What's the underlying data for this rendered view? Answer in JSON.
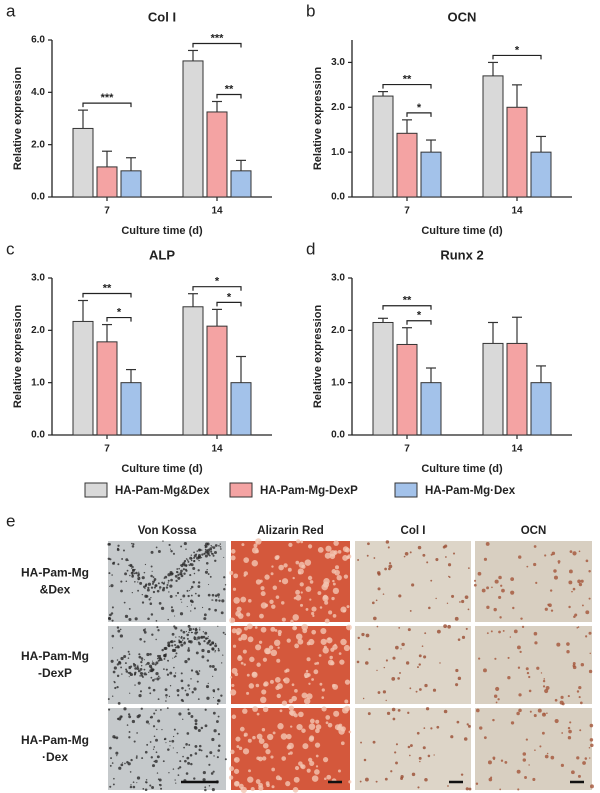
{
  "chart_data": [
    {
      "type": "bar",
      "panel_label": "a",
      "title": "Col I",
      "x_label": "Culture time (d)",
      "y_label": "Relative expression",
      "categories": [
        "7",
        "14"
      ],
      "ylim": [
        0,
        6
      ],
      "yticks": [
        {
          "value": 0,
          "label": "0.0"
        },
        {
          "value": 2,
          "label": "2.0"
        },
        {
          "value": 4,
          "label": "4.0"
        },
        {
          "value": 6,
          "label": "6.0"
        }
      ],
      "series": [
        {
          "name": "HA-Pam-Mg&Dex",
          "color": "#d9d9d9",
          "values": [
            2.62,
            5.2
          ],
          "errors": [
            0.7,
            0.4
          ]
        },
        {
          "name": "HA-Pam-Mg-DexP",
          "color": "#f4a3a3",
          "values": [
            1.15,
            3.25
          ],
          "errors": [
            0.6,
            0.4
          ]
        },
        {
          "name": "HA-Pam-Mg·Dex",
          "color": "#a3c2ea",
          "values": [
            1.0,
            1.0
          ],
          "errors": [
            0.5,
            0.4
          ]
        }
      ],
      "annotations": [
        {
          "text": "***",
          "category": 0,
          "series": [
            0,
            2
          ]
        },
        {
          "text": "**",
          "category": 1,
          "series": [
            1,
            2
          ]
        },
        {
          "text": "***",
          "category": 1,
          "series": [
            0,
            2
          ]
        }
      ]
    },
    {
      "type": "bar",
      "panel_label": "b",
      "title": "OCN",
      "x_label": "Culture time (d)",
      "y_label": "Relative expression",
      "categories": [
        "7",
        "14"
      ],
      "ylim": [
        0,
        3.5
      ],
      "yticks": [
        {
          "value": 0,
          "label": "0.0"
        },
        {
          "value": 1,
          "label": "1.0"
        },
        {
          "value": 2,
          "label": "2.0"
        },
        {
          "value": 3,
          "label": "3.0"
        }
      ],
      "series": [
        {
          "color": "#d9d9d9",
          "values": [
            2.25,
            2.7
          ],
          "errors": [
            0.1,
            0.3
          ]
        },
        {
          "color": "#f4a3a3",
          "values": [
            1.42,
            2.0
          ],
          "errors": [
            0.3,
            0.5
          ]
        },
        {
          "color": "#a3c2ea",
          "values": [
            1.0,
            1.0
          ],
          "errors": [
            0.27,
            0.35
          ]
        }
      ],
      "annotations": [
        {
          "text": "*",
          "category": 0,
          "series": [
            1,
            2
          ]
        },
        {
          "text": "**",
          "category": 0,
          "series": [
            0,
            2
          ]
        },
        {
          "text": "*",
          "category": 1,
          "series": [
            0,
            2
          ]
        }
      ]
    },
    {
      "type": "bar",
      "panel_label": "c",
      "title": "ALP",
      "x_label": "Culture time (d)",
      "y_label": "Relative expression",
      "categories": [
        "7",
        "14"
      ],
      "ylim": [
        0,
        3
      ],
      "yticks": [
        {
          "value": 0,
          "label": "0.0"
        },
        {
          "value": 1,
          "label": "1.0"
        },
        {
          "value": 2,
          "label": "2.0"
        },
        {
          "value": 3,
          "label": "3.0"
        }
      ],
      "series": [
        {
          "color": "#d9d9d9",
          "values": [
            2.17,
            2.45
          ],
          "errors": [
            0.4,
            0.25
          ]
        },
        {
          "color": "#f4a3a3",
          "values": [
            1.78,
            2.08
          ],
          "errors": [
            0.33,
            0.32
          ]
        },
        {
          "color": "#a3c2ea",
          "values": [
            1.0,
            1.0
          ],
          "errors": [
            0.25,
            0.5
          ]
        }
      ],
      "annotations": [
        {
          "text": "*",
          "category": 0,
          "series": [
            1,
            2
          ]
        },
        {
          "text": "**",
          "category": 0,
          "series": [
            0,
            2
          ]
        },
        {
          "text": "*",
          "category": 1,
          "series": [
            1,
            2
          ]
        },
        {
          "text": "*",
          "category": 1,
          "series": [
            0,
            2
          ]
        }
      ]
    },
    {
      "type": "bar",
      "panel_label": "d",
      "title": "Runx 2",
      "x_label": "Culture time (d)",
      "y_label": "Relative expression",
      "categories": [
        "7",
        "14"
      ],
      "ylim": [
        0,
        3
      ],
      "yticks": [
        {
          "value": 0,
          "label": "0.0"
        },
        {
          "value": 1,
          "label": "1.0"
        },
        {
          "value": 2,
          "label": "2.0"
        },
        {
          "value": 3,
          "label": "3.0"
        }
      ],
      "series": [
        {
          "color": "#d9d9d9",
          "values": [
            2.15,
            1.75
          ],
          "errors": [
            0.08,
            0.4
          ]
        },
        {
          "color": "#f4a3a3",
          "values": [
            1.73,
            1.75
          ],
          "errors": [
            0.32,
            0.5
          ]
        },
        {
          "color": "#a3c2ea",
          "values": [
            1.0,
            1.0
          ],
          "errors": [
            0.28,
            0.32
          ]
        }
      ],
      "annotations": [
        {
          "text": "*",
          "category": 0,
          "series": [
            1,
            2
          ]
        },
        {
          "text": "**",
          "category": 0,
          "series": [
            0,
            2
          ]
        }
      ]
    }
  ],
  "image_panel": {
    "label": "e",
    "columns": [
      "Von Kossa",
      "Alizarin Red",
      "Col I",
      "OCN"
    ],
    "rows": [
      [
        "HA-Pam-Mg",
        "&Dex"
      ],
      [
        "HA-Pam-Mg",
        "-DexP"
      ],
      [
        "HA-Pam-Mg",
        "·Dex"
      ]
    ]
  }
}
